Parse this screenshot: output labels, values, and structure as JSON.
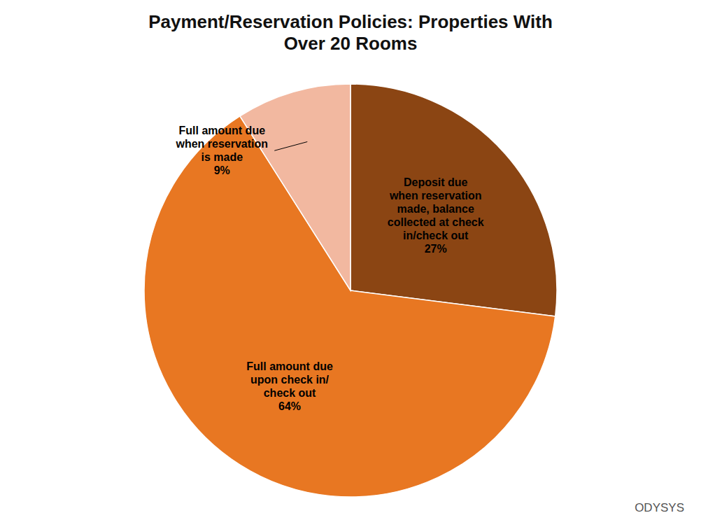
{
  "chart_data": {
    "type": "pie",
    "title": "Payment/Reservation Policies: Properties With\nOver 20 Rooms",
    "categories": [
      "Deposit due\nwhen reservation\nmade, balance\ncollected at check\nin/check out",
      "Full amount due\nupon check in/\ncheck out",
      "Full amount due\nwhen reservation\nis made"
    ],
    "values": [
      27,
      64,
      9
    ],
    "value_labels": [
      "27%",
      "64%",
      "9%"
    ],
    "data_labels": true,
    "colors": [
      "#8B4513",
      "#E87722",
      "#F2B8A0"
    ],
    "annotations": [
      {
        "text": "ODYSYS",
        "color": "#555555"
      }
    ]
  }
}
